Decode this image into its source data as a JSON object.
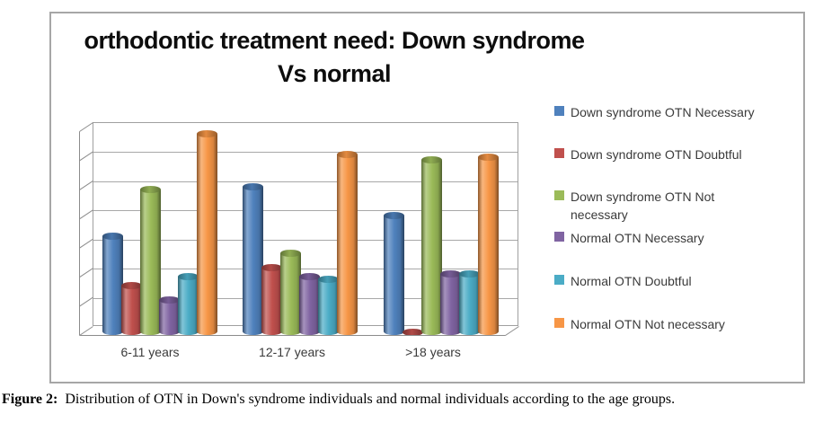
{
  "figure": {
    "caption_prefix": "Figure 2:",
    "caption_text": "Distribution of OTN in Down's syndrome individuals and normal individuals according to the age groups."
  },
  "chart_data": {
    "type": "bar",
    "style": "3d-cylinder",
    "title": "orthodontic treatment need: Down syndrome Vs normal",
    "title_lines": [
      "orthodontic treatment need: Down syndrome",
      "Vs normal"
    ],
    "categories": [
      "6-11 years",
      "12-17 years",
      ">18 years"
    ],
    "series": [
      {
        "name": "Down syndrome OTN Necessary",
        "color": "#4f81bd",
        "values": [
          34,
          51,
          41
        ]
      },
      {
        "name": "Down syndrome OTN Doubtful",
        "color": "#c0504d",
        "values": [
          17,
          23,
          1
        ]
      },
      {
        "name": "Down syndrome OTN Not necessary",
        "color": "#9bbb59",
        "values": [
          50,
          28,
          60
        ]
      },
      {
        "name": "Normal OTN Necessary",
        "color": "#8064a2",
        "values": [
          12,
          20,
          21
        ]
      },
      {
        "name": "Normal OTN Doubtful",
        "color": "#4bacc6",
        "values": [
          20,
          19,
          21
        ]
      },
      {
        "name": "Normal OTN Not necessary",
        "color": "#f79646",
        "values": [
          69,
          62,
          61
        ]
      }
    ],
    "ylim": [
      0,
      70
    ],
    "gridline_step": 10,
    "y_axis_labels_visible": false,
    "xlabel": "",
    "ylabel": "",
    "grid": true,
    "legend_position": "right",
    "colors": {
      "gridline": "#a8a8a8",
      "wall_border": "#a0a0a0",
      "chart_border": "#a6a6a6",
      "text": "#3a3a3a",
      "title_text": "#0d0d0d"
    }
  }
}
